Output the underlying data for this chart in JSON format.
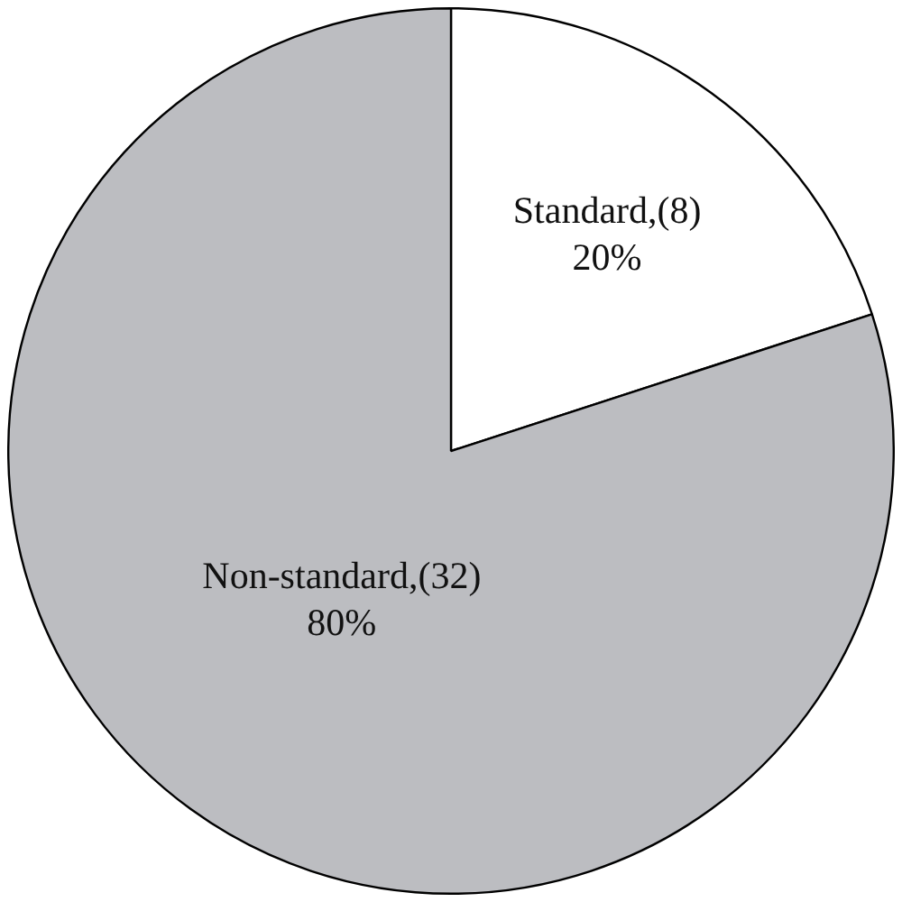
{
  "chart_data": {
    "type": "pie",
    "categories": [
      "Standard",
      "Non-standard"
    ],
    "values": [
      8,
      32
    ],
    "colors": [
      "#ffffff",
      "#bcbdc1"
    ],
    "value_labels": [
      ",(8)\n20%",
      ",(32)\n80%"
    ],
    "legend": false
  }
}
